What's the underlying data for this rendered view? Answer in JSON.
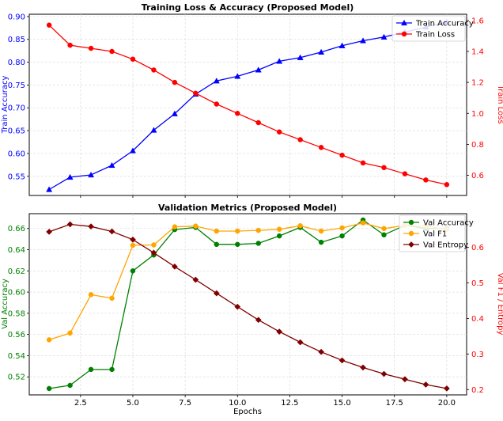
{
  "chart_data": [
    {
      "type": "line",
      "title": "Training Loss & Accuracy (Proposed Model)",
      "xlabel": "",
      "ylabel_left": "Train Accuracy",
      "ylabel_right": "Train Loss",
      "xlim": [
        0.05,
        20.95
      ],
      "ylim_left": [
        0.508,
        0.905
      ],
      "ylim_right": [
        0.47,
        1.64
      ],
      "x_ticks": [
        2.5,
        5.0,
        7.5,
        10.0,
        12.5,
        15.0,
        17.5,
        20.0
      ],
      "x_tick_labels": [],
      "y_ticks_left": [
        0.55,
        0.6,
        0.65,
        0.7,
        0.75,
        0.8,
        0.85,
        0.9
      ],
      "y_tick_labels_left": [
        "0.55",
        "0.60",
        "0.65",
        "0.70",
        "0.75",
        "0.80",
        "0.85",
        "0.90"
      ],
      "y_ticks_right": [
        0.6,
        0.8,
        1.0,
        1.2,
        1.4,
        1.6
      ],
      "y_tick_labels_right": [
        "0.6",
        "0.8",
        "1.0",
        "1.2",
        "1.4",
        "1.6"
      ],
      "grid": true,
      "legend_position": "top-right",
      "x": [
        1,
        2,
        3,
        4,
        5,
        6,
        7,
        8,
        9,
        10,
        11,
        12,
        13,
        14,
        15,
        16,
        17,
        18,
        19,
        20
      ],
      "series": [
        {
          "name": "Train Accuracy",
          "axis": "left",
          "color": "#0000ff",
          "marker": "triangle",
          "values": [
            0.521,
            0.548,
            0.553,
            0.574,
            0.606,
            0.651,
            0.687,
            0.73,
            0.759,
            0.769,
            0.783,
            0.802,
            0.81,
            0.822,
            0.836,
            0.847,
            0.855,
            0.866,
            0.877,
            0.888
          ]
        },
        {
          "name": "Train Loss",
          "axis": "right",
          "color": "#ff0000",
          "marker": "circle",
          "values": [
            1.57,
            1.44,
            1.42,
            1.4,
            1.35,
            1.28,
            1.2,
            1.13,
            1.06,
            1.0,
            0.94,
            0.88,
            0.83,
            0.78,
            0.73,
            0.68,
            0.65,
            0.61,
            0.57,
            0.54
          ]
        }
      ]
    },
    {
      "type": "line",
      "title": "Validation Metrics (Proposed Model)",
      "xlabel": "Epochs",
      "ylabel_left": "Val Accuracy",
      "ylabel_right": "Val F1 / Entropy",
      "xlim": [
        0.05,
        20.95
      ],
      "ylim_left": [
        0.503,
        0.674
      ],
      "ylim_right": [
        0.185,
        0.695
      ],
      "x_ticks": [
        2.5,
        5.0,
        7.5,
        10.0,
        12.5,
        15.0,
        17.5,
        20.0
      ],
      "x_tick_labels": [
        "2.5",
        "5.0",
        "7.5",
        "10.0",
        "12.5",
        "15.0",
        "17.5",
        "20.0"
      ],
      "y_ticks_left": [
        0.52,
        0.54,
        0.56,
        0.58,
        0.6,
        0.62,
        0.64,
        0.66
      ],
      "y_tick_labels_left": [
        "0.52",
        "0.54",
        "0.56",
        "0.58",
        "0.60",
        "0.62",
        "0.64",
        "0.66"
      ],
      "y_ticks_right": [
        0.2,
        0.3,
        0.4,
        0.5,
        0.6
      ],
      "y_tick_labels_right": [
        "0.2",
        "0.3",
        "0.4",
        "0.5",
        "0.6"
      ],
      "grid": true,
      "legend_position": "top-right",
      "x": [
        1,
        2,
        3,
        4,
        5,
        6,
        7,
        8,
        9,
        10,
        11,
        12,
        13,
        14,
        15,
        16,
        17,
        18,
        19,
        20
      ],
      "series": [
        {
          "name": "Val Accuracy",
          "axis": "left",
          "color": "#008000",
          "marker": "circle",
          "values": [
            0.509,
            0.512,
            0.527,
            0.527,
            0.62,
            0.635,
            0.659,
            0.661,
            0.645,
            0.645,
            0.646,
            0.653,
            0.661,
            0.647,
            0.653,
            0.668,
            0.654,
            0.663,
            0.66,
            0.66
          ]
        },
        {
          "name": "Val F1",
          "axis": "right",
          "color": "#ffa500",
          "marker": "circle",
          "values": [
            0.34,
            0.359,
            0.467,
            0.457,
            0.606,
            0.607,
            0.658,
            0.66,
            0.646,
            0.646,
            0.648,
            0.651,
            0.661,
            0.646,
            0.655,
            0.669,
            0.653,
            0.662,
            0.66,
            0.651
          ]
        },
        {
          "name": "Val Entropy",
          "axis": "right",
          "color": "#800000",
          "marker": "diamond",
          "values": [
            0.644,
            0.665,
            0.659,
            0.645,
            0.622,
            0.585,
            0.546,
            0.509,
            0.471,
            0.433,
            0.396,
            0.363,
            0.333,
            0.306,
            0.282,
            0.262,
            0.244,
            0.229,
            0.214,
            0.203
          ]
        }
      ]
    }
  ]
}
